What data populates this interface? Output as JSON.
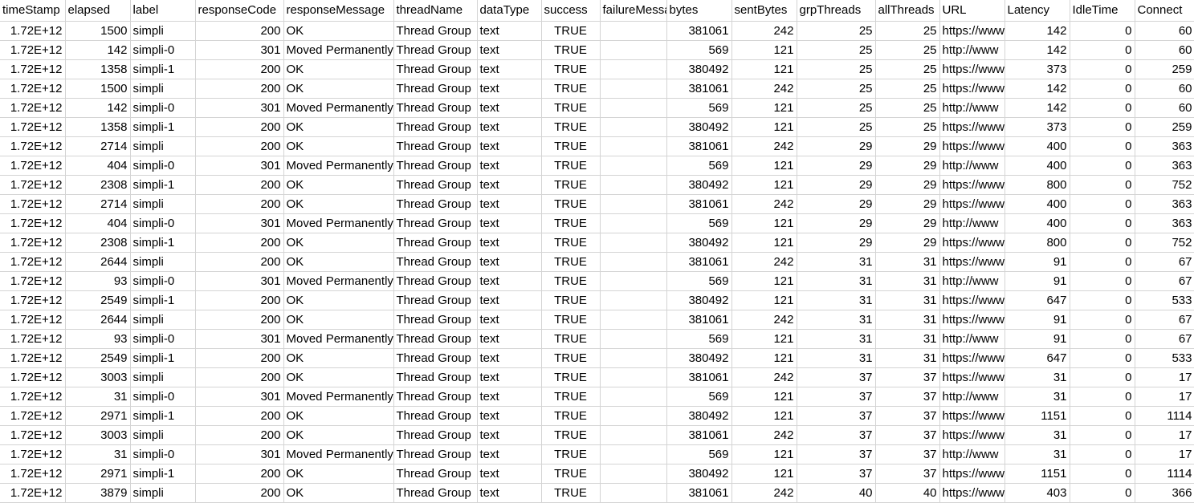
{
  "sheet": {
    "columns": [
      "timeStamp",
      "elapsed",
      "label",
      "responseCode",
      "responseMessage",
      "threadName",
      "dataType",
      "success",
      "failureMessage",
      "bytes",
      "sentBytes",
      "grpThreads",
      "allThreads",
      "URL",
      "Latency",
      "IdleTime",
      "Connect"
    ],
    "rows": [
      [
        "1.72E+12",
        "1500",
        "simpli",
        "200",
        "OK",
        "Thread Group",
        "text",
        "TRUE",
        "",
        "381061",
        "242",
        "25",
        "25",
        "https://www",
        "142",
        "0",
        "60"
      ],
      [
        "1.72E+12",
        "142",
        "simpli-0",
        "301",
        "Moved Permanently",
        "Thread Group",
        "text",
        "TRUE",
        "",
        "569",
        "121",
        "25",
        "25",
        "http://www",
        "142",
        "0",
        "60"
      ],
      [
        "1.72E+12",
        "1358",
        "simpli-1",
        "200",
        "OK",
        "Thread Group",
        "text",
        "TRUE",
        "",
        "380492",
        "121",
        "25",
        "25",
        "https://www",
        "373",
        "0",
        "259"
      ],
      [
        "1.72E+12",
        "1500",
        "simpli",
        "200",
        "OK",
        "Thread Group",
        "text",
        "TRUE",
        "",
        "381061",
        "242",
        "25",
        "25",
        "https://www",
        "142",
        "0",
        "60"
      ],
      [
        "1.72E+12",
        "142",
        "simpli-0",
        "301",
        "Moved Permanently",
        "Thread Group",
        "text",
        "TRUE",
        "",
        "569",
        "121",
        "25",
        "25",
        "http://www",
        "142",
        "0",
        "60"
      ],
      [
        "1.72E+12",
        "1358",
        "simpli-1",
        "200",
        "OK",
        "Thread Group",
        "text",
        "TRUE",
        "",
        "380492",
        "121",
        "25",
        "25",
        "https://www",
        "373",
        "0",
        "259"
      ],
      [
        "1.72E+12",
        "2714",
        "simpli",
        "200",
        "OK",
        "Thread Group",
        "text",
        "TRUE",
        "",
        "381061",
        "242",
        "29",
        "29",
        "https://www",
        "400",
        "0",
        "363"
      ],
      [
        "1.72E+12",
        "404",
        "simpli-0",
        "301",
        "Moved Permanently",
        "Thread Group",
        "text",
        "TRUE",
        "",
        "569",
        "121",
        "29",
        "29",
        "http://www",
        "400",
        "0",
        "363"
      ],
      [
        "1.72E+12",
        "2308",
        "simpli-1",
        "200",
        "OK",
        "Thread Group",
        "text",
        "TRUE",
        "",
        "380492",
        "121",
        "29",
        "29",
        "https://www",
        "800",
        "0",
        "752"
      ],
      [
        "1.72E+12",
        "2714",
        "simpli",
        "200",
        "OK",
        "Thread Group",
        "text",
        "TRUE",
        "",
        "381061",
        "242",
        "29",
        "29",
        "https://www",
        "400",
        "0",
        "363"
      ],
      [
        "1.72E+12",
        "404",
        "simpli-0",
        "301",
        "Moved Permanently",
        "Thread Group",
        "text",
        "TRUE",
        "",
        "569",
        "121",
        "29",
        "29",
        "http://www",
        "400",
        "0",
        "363"
      ],
      [
        "1.72E+12",
        "2308",
        "simpli-1",
        "200",
        "OK",
        "Thread Group",
        "text",
        "TRUE",
        "",
        "380492",
        "121",
        "29",
        "29",
        "https://www",
        "800",
        "0",
        "752"
      ],
      [
        "1.72E+12",
        "2644",
        "simpli",
        "200",
        "OK",
        "Thread Group",
        "text",
        "TRUE",
        "",
        "381061",
        "242",
        "31",
        "31",
        "https://www",
        "91",
        "0",
        "67"
      ],
      [
        "1.72E+12",
        "93",
        "simpli-0",
        "301",
        "Moved Permanently",
        "Thread Group",
        "text",
        "TRUE",
        "",
        "569",
        "121",
        "31",
        "31",
        "http://www",
        "91",
        "0",
        "67"
      ],
      [
        "1.72E+12",
        "2549",
        "simpli-1",
        "200",
        "OK",
        "Thread Group",
        "text",
        "TRUE",
        "",
        "380492",
        "121",
        "31",
        "31",
        "https://www",
        "647",
        "0",
        "533"
      ],
      [
        "1.72E+12",
        "2644",
        "simpli",
        "200",
        "OK",
        "Thread Group",
        "text",
        "TRUE",
        "",
        "381061",
        "242",
        "31",
        "31",
        "https://www",
        "91",
        "0",
        "67"
      ],
      [
        "1.72E+12",
        "93",
        "simpli-0",
        "301",
        "Moved Permanently",
        "Thread Group",
        "text",
        "TRUE",
        "",
        "569",
        "121",
        "31",
        "31",
        "http://www",
        "91",
        "0",
        "67"
      ],
      [
        "1.72E+12",
        "2549",
        "simpli-1",
        "200",
        "OK",
        "Thread Group",
        "text",
        "TRUE",
        "",
        "380492",
        "121",
        "31",
        "31",
        "https://www",
        "647",
        "0",
        "533"
      ],
      [
        "1.72E+12",
        "3003",
        "simpli",
        "200",
        "OK",
        "Thread Group",
        "text",
        "TRUE",
        "",
        "381061",
        "242",
        "37",
        "37",
        "https://www",
        "31",
        "0",
        "17"
      ],
      [
        "1.72E+12",
        "31",
        "simpli-0",
        "301",
        "Moved Permanently",
        "Thread Group",
        "text",
        "TRUE",
        "",
        "569",
        "121",
        "37",
        "37",
        "http://www",
        "31",
        "0",
        "17"
      ],
      [
        "1.72E+12",
        "2971",
        "simpli-1",
        "200",
        "OK",
        "Thread Group",
        "text",
        "TRUE",
        "",
        "380492",
        "121",
        "37",
        "37",
        "https://www",
        "1151",
        "0",
        "1114"
      ],
      [
        "1.72E+12",
        "3003",
        "simpli",
        "200",
        "OK",
        "Thread Group",
        "text",
        "TRUE",
        "",
        "381061",
        "242",
        "37",
        "37",
        "https://www",
        "31",
        "0",
        "17"
      ],
      [
        "1.72E+12",
        "31",
        "simpli-0",
        "301",
        "Moved Permanently",
        "Thread Group",
        "text",
        "TRUE",
        "",
        "569",
        "121",
        "37",
        "37",
        "http://www",
        "31",
        "0",
        "17"
      ],
      [
        "1.72E+12",
        "2971",
        "simpli-1",
        "200",
        "OK",
        "Thread Group",
        "text",
        "TRUE",
        "",
        "380492",
        "121",
        "37",
        "37",
        "https://www",
        "1151",
        "0",
        "1114"
      ],
      [
        "1.72E+12",
        "3879",
        "simpli",
        "200",
        "OK",
        "Thread Group",
        "text",
        "TRUE",
        "",
        "381061",
        "242",
        "40",
        "40",
        "https://www",
        "403",
        "0",
        "366"
      ]
    ]
  }
}
